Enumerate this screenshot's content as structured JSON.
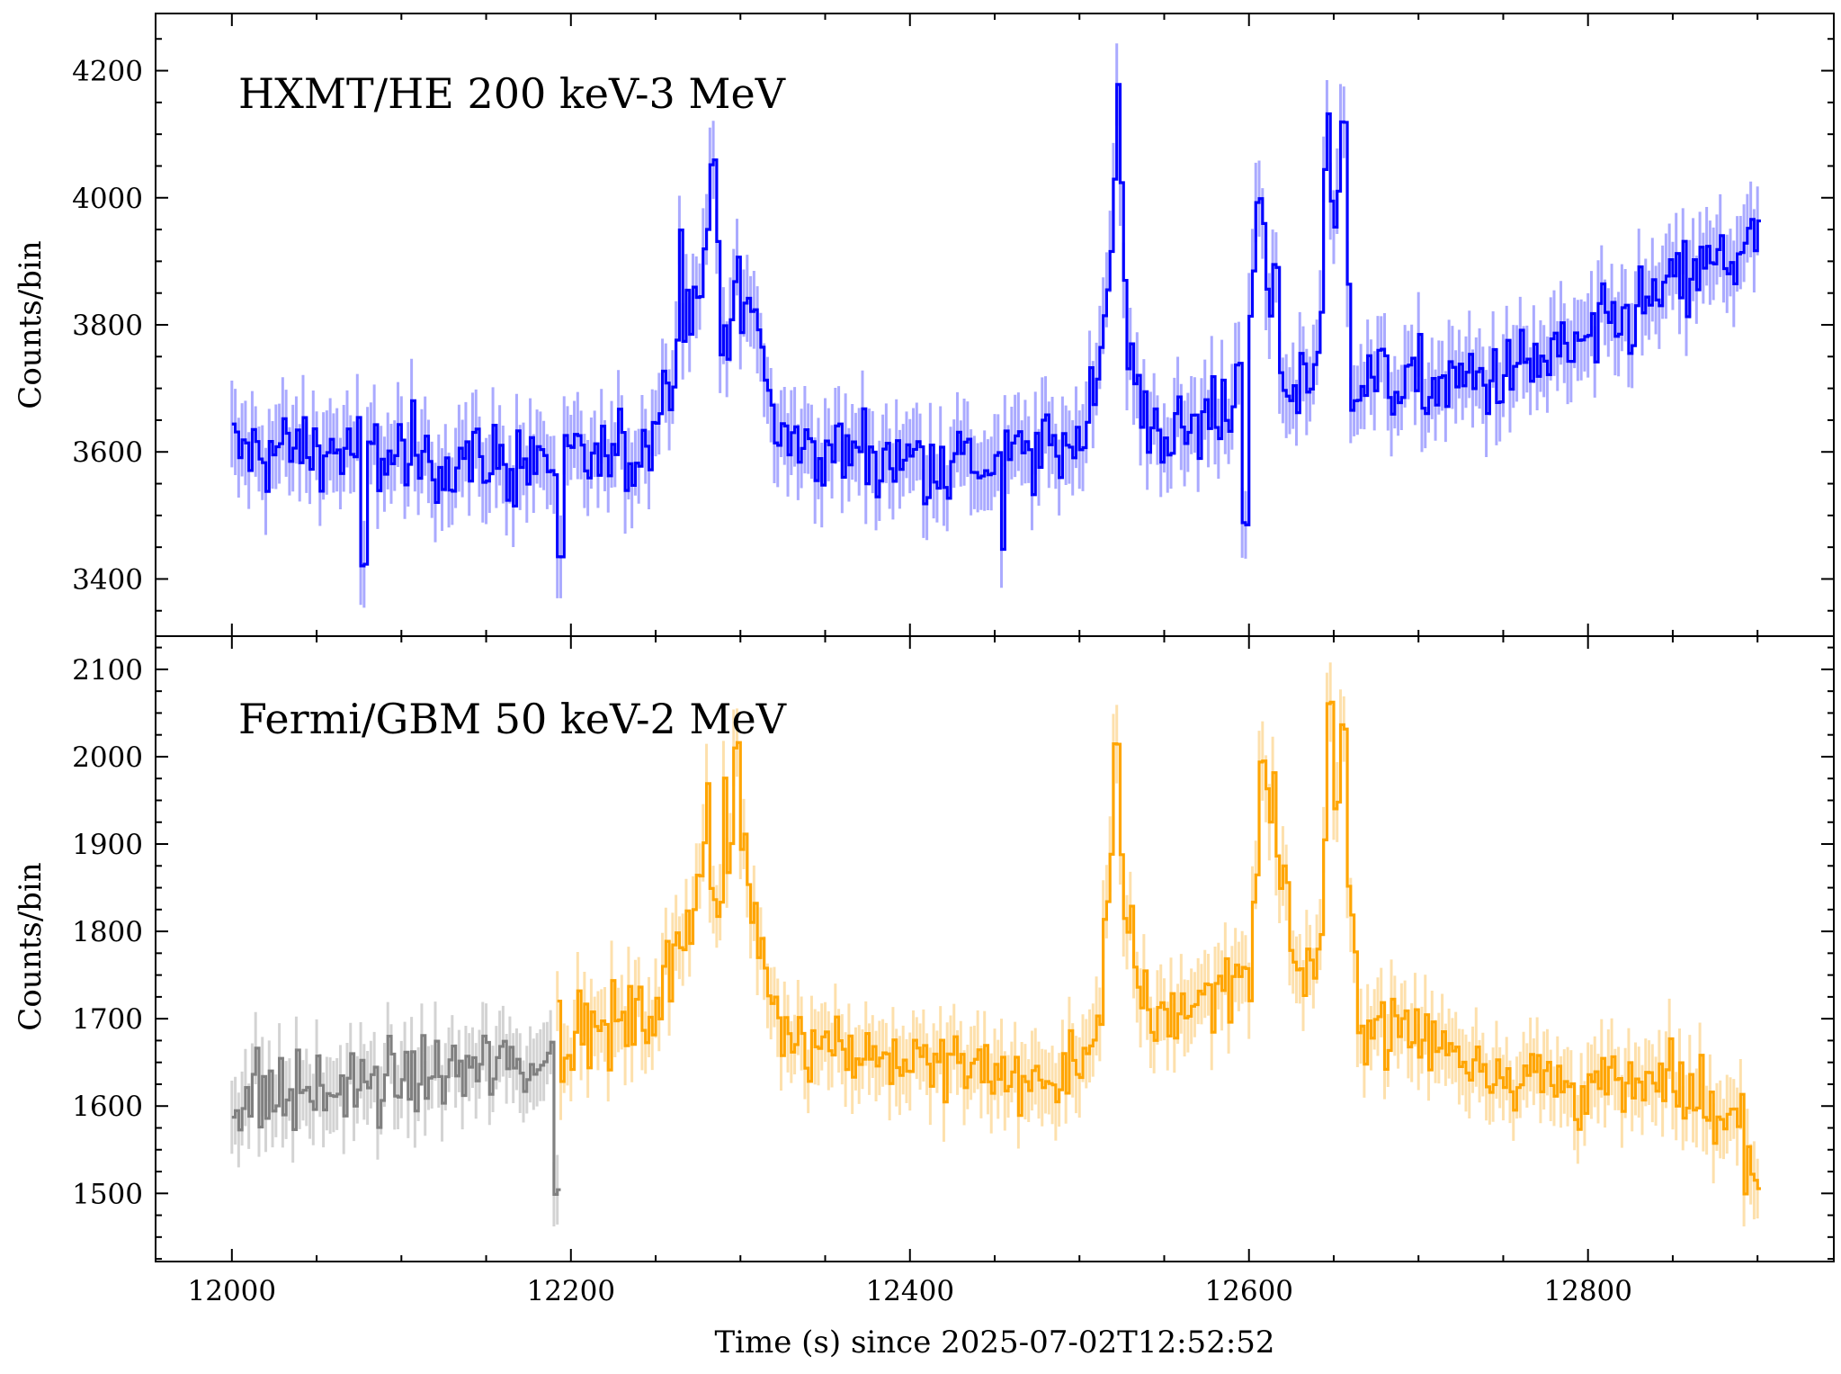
{
  "chart_data": [
    {
      "type": "line",
      "panel": "top",
      "annotation": "HXMT/HE 200 keV-3 MeV",
      "ylabel": "Counts/bin",
      "xlabel": "",
      "xlim": [
        11955,
        12945
      ],
      "ylim": [
        3310,
        4290
      ],
      "xticks": [
        12000,
        12200,
        12400,
        12600,
        12800
      ],
      "yticks": [
        3400,
        3600,
        3800,
        4000,
        4200
      ],
      "ytick_labels": [
        "3400",
        "3600",
        "3800",
        "4000",
        "4200"
      ],
      "series": [
        {
          "color": "#0000ff",
          "error_color": "#aaaaff",
          "x_start": 12000,
          "x_step": 2,
          "y_err": 60,
          "anchors": [
            [
              12000,
              3600
            ],
            [
              12050,
              3605
            ],
            [
              12100,
              3590
            ],
            [
              12150,
              3585
            ],
            [
              12200,
              3580
            ],
            [
              12240,
              3600
            ],
            [
              12250,
              3660
            ],
            [
              12265,
              3800
            ],
            [
              12275,
              3860
            ],
            [
              12283,
              3960
            ],
            [
              12290,
              3800
            ],
            [
              12300,
              3830
            ],
            [
              12312,
              3780
            ],
            [
              12318,
              3640
            ],
            [
              12330,
              3610
            ],
            [
              12400,
              3590
            ],
            [
              12450,
              3580
            ],
            [
              12500,
              3620
            ],
            [
              12510,
              3740
            ],
            [
              12518,
              3920
            ],
            [
              12522,
              4170
            ],
            [
              12526,
              3800
            ],
            [
              12535,
              3660
            ],
            [
              12560,
              3620
            ],
            [
              12590,
              3700
            ],
            [
              12600,
              3780
            ],
            [
              12605,
              3990
            ],
            [
              12610,
              3850
            ],
            [
              12615,
              3770
            ],
            [
              12620,
              3700
            ],
            [
              12640,
              3730
            ],
            [
              12645,
              4130
            ],
            [
              12650,
              3900
            ],
            [
              12655,
              4120
            ],
            [
              12660,
              3720
            ],
            [
              12700,
              3700
            ],
            [
              12750,
              3720
            ],
            [
              12800,
              3770
            ],
            [
              12850,
              3860
            ],
            [
              12900,
              3930
            ]
          ],
          "peaks": [
            [
              12264,
              3950
            ],
            [
              12283,
              4060
            ],
            [
              12522,
              4180
            ],
            [
              12605,
              4000
            ],
            [
              12615,
              3900
            ],
            [
              12646,
              4140
            ],
            [
              12655,
              4125
            ]
          ],
          "dips": [
            [
              12077,
              3415
            ],
            [
              12597,
              3480
            ],
            [
              12454,
              3440
            ],
            [
              12193,
              3430
            ]
          ]
        }
      ]
    },
    {
      "type": "line",
      "panel": "bottom",
      "annotation": "Fermi/GBM 50 keV-2 MeV",
      "ylabel": "Counts/bin",
      "xlabel": "Time (s) since 2025-07-02T12:52:52",
      "xlim": [
        11955,
        12945
      ],
      "ylim": [
        1422,
        2138
      ],
      "xticks": [
        12000,
        12200,
        12400,
        12600,
        12800
      ],
      "xtick_labels": [
        "12000",
        "12200",
        "12400",
        "12600",
        "12800"
      ],
      "yticks": [
        1500,
        1600,
        1700,
        1800,
        1900,
        2000,
        2100
      ],
      "ytick_labels": [
        "1500",
        "1600",
        "1700",
        "1800",
        "1900",
        "2000",
        "2100"
      ],
      "series": [
        {
          "color": "#808080",
          "error_color": "#d3d3d3",
          "x_start": 12000,
          "x_end": 12192,
          "x_step": 2,
          "y_err": 40,
          "anchors": [
            [
              12000,
              1610
            ],
            [
              12050,
              1615
            ],
            [
              12100,
              1630
            ],
            [
              12150,
              1645
            ],
            [
              12190,
              1650
            ]
          ],
          "peaks": [],
          "dips": [
            [
              12191,
              1495
            ]
          ]
        },
        {
          "color": "#ffa500",
          "error_color": "#fde0ac",
          "x_start": 12192,
          "x_end": 12900,
          "x_step": 2,
          "y_err": 40,
          "anchors": [
            [
              12192,
              1680
            ],
            [
              12220,
              1690
            ],
            [
              12245,
              1700
            ],
            [
              12260,
              1760
            ],
            [
              12272,
              1840
            ],
            [
              12280,
              1930
            ],
            [
              12285,
              1800
            ],
            [
              12292,
              1850
            ],
            [
              12297,
              1960
            ],
            [
              12303,
              1850
            ],
            [
              12310,
              1800
            ],
            [
              12320,
              1700
            ],
            [
              12340,
              1680
            ],
            [
              12400,
              1650
            ],
            [
              12450,
              1640
            ],
            [
              12480,
              1620
            ],
            [
              12500,
              1650
            ],
            [
              12512,
              1720
            ],
            [
              12518,
              1900
            ],
            [
              12521,
              1990
            ],
            [
              12526,
              1800
            ],
            [
              12540,
              1700
            ],
            [
              12570,
              1720
            ],
            [
              12600,
              1760
            ],
            [
              12604,
              1900
            ],
            [
              12610,
              1960
            ],
            [
              12618,
              1860
            ],
            [
              12630,
              1750
            ],
            [
              12640,
              1760
            ],
            [
              12647,
              1980
            ],
            [
              12652,
              1920
            ],
            [
              12658,
              1840
            ],
            [
              12665,
              1700
            ],
            [
              12700,
              1680
            ],
            [
              12750,
              1640
            ],
            [
              12800,
              1620
            ],
            [
              12850,
              1620
            ],
            [
              12890,
              1580
            ],
            [
              12900,
              1520
            ]
          ],
          "peaks": [
            [
              12280,
              1970
            ],
            [
              12290,
              1980
            ],
            [
              12297,
              2020
            ],
            [
              12521,
              2020
            ],
            [
              12607,
              2000
            ],
            [
              12614,
              1990
            ],
            [
              12647,
              2070
            ],
            [
              12655,
              2040
            ]
          ],
          "dips": [
            [
              12899,
              1512
            ]
          ]
        }
      ]
    }
  ]
}
